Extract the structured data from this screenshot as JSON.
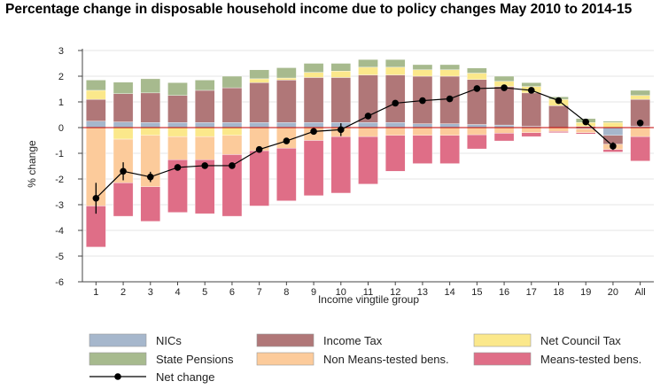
{
  "title": "Percentage change in disposable household income due to policy changes May 2010 to 2014-15",
  "chart_data": {
    "type": "bar",
    "stacked": true,
    "xlabel": "Income vingtile group",
    "ylabel": "% change",
    "ylim": [
      -6,
      3
    ],
    "yticks": [
      3,
      2,
      1,
      0,
      -1,
      -2,
      -3,
      -4,
      -5,
      -6
    ],
    "categories": [
      "1",
      "2",
      "3",
      "4",
      "5",
      "6",
      "7",
      "8",
      "9",
      "10",
      "11",
      "12",
      "13",
      "14",
      "15",
      "16",
      "17",
      "18",
      "19",
      "20",
      "All"
    ],
    "grid": true,
    "legend_position": "bottom",
    "series": [
      {
        "name": "NICs",
        "color": "#a6b7cc",
        "values": [
          0.25,
          0.22,
          0.2,
          0.2,
          0.2,
          0.2,
          0.2,
          0.2,
          0.2,
          0.2,
          0.2,
          0.2,
          0.15,
          0.15,
          0.12,
          0.1,
          0.05,
          0.0,
          -0.05,
          -0.3,
          0.05
        ]
      },
      {
        "name": "Income Tax",
        "color": "#b07778",
        "values": [
          0.85,
          1.1,
          1.15,
          1.05,
          1.25,
          1.35,
          1.55,
          1.65,
          1.75,
          1.75,
          1.85,
          1.85,
          1.85,
          1.85,
          1.75,
          1.5,
          1.3,
          0.85,
          0.05,
          -0.35,
          1.05
        ]
      },
      {
        "name": "Net Council Tax",
        "color": "#fbe88b",
        "values": [
          0.35,
          -0.45,
          -0.3,
          -0.35,
          -0.35,
          -0.3,
          0.15,
          0.08,
          0.2,
          0.25,
          0.3,
          0.3,
          0.25,
          0.25,
          0.25,
          0.2,
          0.25,
          0.25,
          0.15,
          0.2,
          0.15
        ]
      },
      {
        "name": "State Pensions",
        "color": "#a7ba8e",
        "values": [
          0.4,
          0.45,
          0.55,
          0.5,
          0.4,
          0.45,
          0.35,
          0.4,
          0.35,
          0.3,
          0.3,
          0.3,
          0.2,
          0.2,
          0.2,
          0.2,
          0.15,
          0.1,
          0.15,
          0.05,
          0.2
        ]
      },
      {
        "name": "Non Means-tested bens.",
        "color": "#fccb9b",
        "values": [
          -3.05,
          -1.7,
          -2.0,
          -0.9,
          -0.9,
          -0.75,
          -0.9,
          -0.8,
          -0.5,
          -0.35,
          -0.35,
          -0.3,
          -0.3,
          -0.3,
          -0.28,
          -0.22,
          -0.2,
          -0.15,
          -0.15,
          -0.2,
          -0.35
        ]
      },
      {
        "name": "Means-tested bens.",
        "color": "#df6e87",
        "values": [
          -1.6,
          -1.3,
          -1.35,
          -2.05,
          -2.1,
          -2.4,
          -2.15,
          -2.05,
          -2.15,
          -2.2,
          -1.85,
          -1.4,
          -1.1,
          -1.1,
          -0.55,
          -0.3,
          -0.15,
          -0.05,
          -0.05,
          -0.1,
          -0.95
        ]
      }
    ],
    "net_change": {
      "name": "Net change",
      "values": [
        -2.75,
        -1.7,
        -1.92,
        -1.55,
        -1.48,
        -1.48,
        -0.85,
        -0.52,
        -0.15,
        -0.08,
        0.45,
        0.95,
        1.05,
        1.12,
        1.52,
        1.55,
        1.45,
        1.05,
        0.22,
        -0.72,
        0.18
      ],
      "error": [
        0.6,
        0.35,
        0.2,
        0.08,
        0.06,
        0.06,
        0.06,
        0.06,
        0.06,
        0.25,
        0.06,
        0.06,
        0.06,
        0.06,
        0.06,
        0.06,
        0.06,
        0.06,
        0.06,
        0.15,
        0.06
      ]
    }
  },
  "legend": {
    "items": [
      {
        "label": "NICs",
        "color": "#a6b7cc",
        "kind": "box"
      },
      {
        "label": "Income Tax",
        "color": "#b07778",
        "kind": "box"
      },
      {
        "label": "Net Council Tax",
        "color": "#fbe88b",
        "kind": "box"
      },
      {
        "label": "State Pensions",
        "color": "#a7ba8e",
        "kind": "box"
      },
      {
        "label": "Non Means-tested bens.",
        "color": "#fccb9b",
        "kind": "box"
      },
      {
        "label": "Means-tested bens.",
        "color": "#df6e87",
        "kind": "box"
      },
      {
        "label": "Net change",
        "color": "#000000",
        "kind": "line-marker"
      }
    ]
  }
}
